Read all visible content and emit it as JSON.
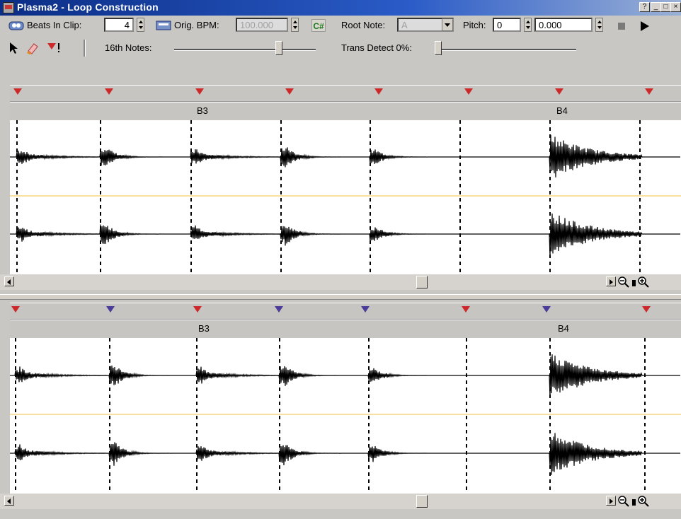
{
  "window": {
    "title": "Plasma2 - Loop Construction",
    "controls": [
      "?",
      "_",
      "□",
      "×"
    ]
  },
  "toolbar": {
    "beats_label": "Beats In Clip:",
    "beats_value": "4",
    "bpm_label": "Orig. BPM:",
    "bpm_value": "100.000",
    "key_icon_text": "C#",
    "root_note_label": "Root Note:",
    "root_note_value": "A",
    "pitch_label": "Pitch:",
    "pitch_semitones": "0",
    "pitch_fine": "0.000",
    "notes_label": "16th Notes:",
    "trans_label": "Trans Detect 0%:"
  },
  "sliders": {
    "notes_level": 0.75,
    "trans_level": 0.0
  },
  "panels": [
    {
      "name": "original",
      "bar_labels": [
        "B3",
        "B4"
      ]
    },
    {
      "name": "processed",
      "bar_labels": [
        "B3",
        "B4"
      ]
    }
  ],
  "colors": {
    "title_bar": "#0b2e86",
    "marker_red": "#cc2a2a",
    "marker_blue": "#4b3c9a",
    "center_line": "#f0c040"
  }
}
